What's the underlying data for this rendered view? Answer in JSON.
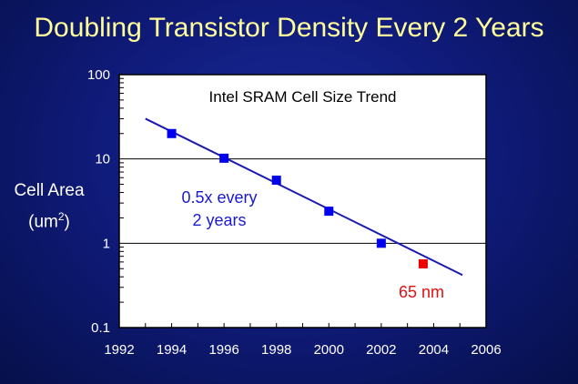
{
  "slide_title": "Doubling Transistor Density Every 2 Years",
  "chart_data": {
    "type": "scatter",
    "title": "Intel SRAM Cell Size Trend",
    "xlabel": "",
    "ylabel": "Cell Area (um2)",
    "ylabel_line1": "Cell Area",
    "ylabel_line2": "(um",
    "ylabel_sup": "2",
    "ylabel_close": ")",
    "xlim": [
      1992,
      2006
    ],
    "ylim": [
      0.1,
      100
    ],
    "yscale": "log",
    "xticks": [
      "1992",
      "1994",
      "1996",
      "1998",
      "2000",
      "2002",
      "2004",
      "2006"
    ],
    "yticks": [
      "100",
      "10",
      "1",
      "0.1"
    ],
    "grid": "horizontal at 10 and 1",
    "series": [
      {
        "name": "Intel SRAM cells",
        "color": "#0000ee",
        "points": [
          [
            1994,
            20
          ],
          [
            1996,
            10.2
          ],
          [
            1998,
            5.6
          ],
          [
            2000,
            2.4
          ],
          [
            2002,
            1.0
          ]
        ]
      },
      {
        "name": "65 nm",
        "color": "#ee0000",
        "points": [
          [
            2003.6,
            0.57
          ]
        ]
      }
    ],
    "trend_line": {
      "color": "#1a1ab0",
      "from": [
        1993,
        30
      ],
      "to": [
        2005.1,
        0.42
      ]
    },
    "annotations": [
      {
        "text_line1": "0.5x every",
        "text_line2": "2 years",
        "color": "#1a1ad0"
      },
      {
        "text": "65 nm",
        "color": "#e01010"
      }
    ]
  }
}
